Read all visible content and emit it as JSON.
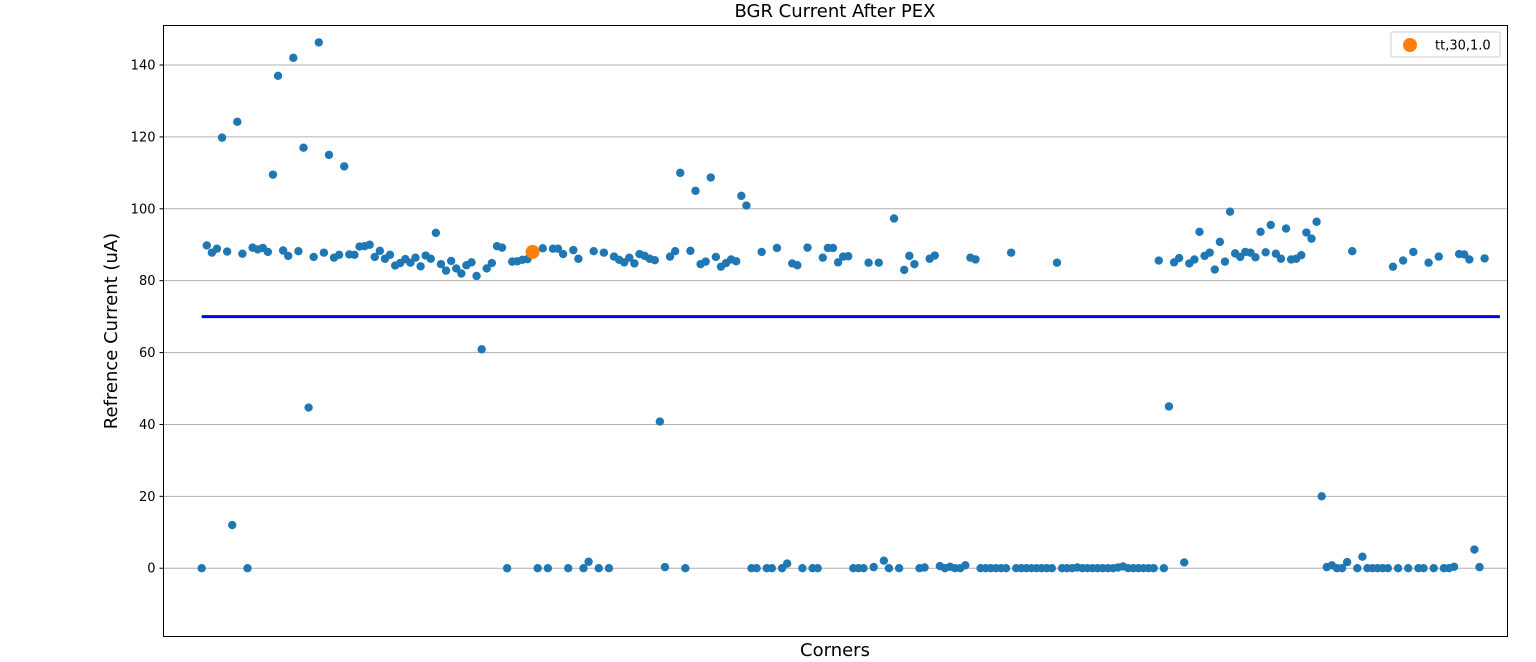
{
  "chart_data": {
    "type": "scatter",
    "title": "BGR Current After PEX",
    "xlabel": "Corners",
    "ylabel": "Refrence Current (uA)",
    "ylim": [
      -19,
      151
    ],
    "xlim": [
      -7.5,
      256.5
    ],
    "yticks": [
      0,
      20,
      40,
      60,
      80,
      100,
      120,
      140
    ],
    "xticks": [],
    "grid": "horizontal",
    "legend_position": "top-right",
    "colors": {
      "points": "#1f77b4",
      "highlight": "#ff7f0e",
      "threshold": "#0000ff",
      "grid": "#b0b0b0"
    },
    "series": [
      {
        "points": [
          [
            0,
            0
          ],
          [
            1,
            89.8
          ],
          [
            2,
            87.8
          ],
          [
            3,
            88.9
          ],
          [
            4,
            119.8
          ],
          [
            5,
            88.1
          ],
          [
            6,
            12
          ],
          [
            7,
            124.2
          ],
          [
            8,
            87.5
          ],
          [
            9,
            0
          ],
          [
            10,
            89.2
          ],
          [
            11,
            88.7
          ],
          [
            12,
            89.1
          ],
          [
            13,
            88
          ],
          [
            14,
            109.5
          ],
          [
            15,
            137
          ],
          [
            16,
            88.4
          ],
          [
            17,
            86.9
          ],
          [
            18,
            142
          ],
          [
            19,
            88.2
          ],
          [
            20,
            117
          ],
          [
            21,
            44.7
          ],
          [
            22,
            86.6
          ],
          [
            23,
            146.3
          ],
          [
            24,
            87.8
          ],
          [
            25,
            115
          ],
          [
            26,
            86.4
          ],
          [
            27,
            87.2
          ],
          [
            28,
            111.8
          ],
          [
            29,
            87.3
          ],
          [
            30,
            87.2
          ],
          [
            31,
            89.5
          ],
          [
            32,
            89.6
          ],
          [
            33,
            90
          ],
          [
            34,
            86.6
          ],
          [
            35,
            88.3
          ],
          [
            36,
            86.1
          ],
          [
            37,
            87.2
          ],
          [
            38,
            84.2
          ],
          [
            39,
            84.9
          ],
          [
            40,
            86
          ],
          [
            41,
            85
          ],
          [
            42,
            86.4
          ],
          [
            43,
            84
          ],
          [
            44,
            87
          ],
          [
            45,
            86.1
          ],
          [
            46,
            93.3
          ],
          [
            47,
            84.6
          ],
          [
            48,
            82.8
          ],
          [
            49,
            85.5
          ],
          [
            50,
            83.4
          ],
          [
            51,
            82
          ],
          [
            52,
            84.3
          ],
          [
            53,
            85.1
          ],
          [
            54,
            81.3
          ],
          [
            55,
            60.9
          ],
          [
            56,
            83.4
          ],
          [
            57,
            84.9
          ],
          [
            58,
            89.6
          ],
          [
            59,
            89.2
          ],
          [
            60,
            0
          ],
          [
            61,
            85.3
          ],
          [
            62,
            85.4
          ],
          [
            63,
            85.8
          ],
          [
            64,
            86
          ],
          [
            66,
            0
          ],
          [
            67,
            89
          ],
          [
            68,
            0
          ],
          [
            69,
            88.9
          ],
          [
            70,
            88.9
          ],
          [
            71,
            87.4
          ],
          [
            72,
            0
          ],
          [
            73,
            88.5
          ],
          [
            74,
            86.1
          ],
          [
            75,
            0
          ],
          [
            76,
            1.8
          ],
          [
            77,
            88.2
          ],
          [
            78,
            0
          ],
          [
            79,
            87.8
          ],
          [
            80,
            0
          ],
          [
            81,
            86.7
          ],
          [
            82,
            85.8
          ],
          [
            83,
            85.1
          ],
          [
            84,
            86.4
          ],
          [
            85,
            84.8
          ],
          [
            86,
            87.4
          ],
          [
            87,
            86.9
          ],
          [
            88,
            86.1
          ],
          [
            89,
            85.7
          ],
          [
            90,
            40.8
          ],
          [
            91,
            0.3
          ],
          [
            92,
            86.7
          ],
          [
            93,
            88.2
          ],
          [
            94,
            110
          ],
          [
            95,
            0
          ],
          [
            96,
            88.3
          ],
          [
            97,
            105
          ],
          [
            98,
            84.6
          ],
          [
            99,
            85.3
          ],
          [
            100,
            108.7
          ],
          [
            101,
            86.6
          ],
          [
            102,
            83.9
          ],
          [
            103,
            84.9
          ],
          [
            104,
            85.9
          ],
          [
            105,
            85.4
          ],
          [
            106,
            103.6
          ],
          [
            107,
            100.9
          ],
          [
            108,
            0
          ],
          [
            109,
            0
          ],
          [
            110,
            88
          ],
          [
            111,
            0
          ],
          [
            112,
            0
          ],
          [
            113,
            89.1
          ],
          [
            114,
            0
          ],
          [
            115,
            1.3
          ],
          [
            116,
            84.8
          ],
          [
            117,
            84.3
          ],
          [
            118,
            0
          ],
          [
            119,
            89.2
          ],
          [
            120,
            0
          ],
          [
            121,
            0
          ],
          [
            122,
            86.4
          ],
          [
            123,
            89.1
          ],
          [
            124,
            89.1
          ],
          [
            125,
            85.1
          ],
          [
            126,
            86.7
          ],
          [
            127,
            86.8
          ],
          [
            128,
            0
          ],
          [
            129,
            0
          ],
          [
            130,
            0
          ],
          [
            131,
            85
          ],
          [
            132,
            0.3
          ],
          [
            133,
            85
          ],
          [
            134,
            2.1
          ],
          [
            135,
            0
          ],
          [
            136,
            97.3
          ],
          [
            137,
            0
          ],
          [
            138,
            83
          ],
          [
            139,
            86.9
          ],
          [
            140,
            84.6
          ],
          [
            141,
            0
          ],
          [
            142,
            0.2
          ],
          [
            143,
            86.1
          ],
          [
            144,
            87
          ],
          [
            145,
            0.6
          ],
          [
            146,
            0
          ],
          [
            147,
            0.4
          ],
          [
            148,
            0
          ],
          [
            149,
            0
          ],
          [
            150,
            0.8
          ],
          [
            151,
            86.4
          ],
          [
            152,
            85.9
          ],
          [
            153,
            0
          ],
          [
            154,
            0
          ],
          [
            155,
            0
          ],
          [
            156,
            0
          ],
          [
            157,
            0
          ],
          [
            158,
            0
          ],
          [
            159,
            87.8
          ],
          [
            160,
            0
          ],
          [
            161,
            0
          ],
          [
            162,
            0
          ],
          [
            163,
            0
          ],
          [
            164,
            0
          ],
          [
            165,
            0
          ],
          [
            166,
            0
          ],
          [
            167,
            0
          ],
          [
            168,
            85
          ],
          [
            169,
            0
          ],
          [
            170,
            0
          ],
          [
            171,
            0
          ],
          [
            172,
            0.2
          ],
          [
            173,
            0
          ],
          [
            174,
            0
          ],
          [
            175,
            0
          ],
          [
            176,
            0
          ],
          [
            177,
            0
          ],
          [
            178,
            0
          ],
          [
            179,
            0
          ],
          [
            180,
            0.2
          ],
          [
            181,
            0.5
          ],
          [
            182,
            0
          ],
          [
            183,
            0
          ],
          [
            184,
            0
          ],
          [
            185,
            0
          ],
          [
            186,
            0
          ],
          [
            187,
            0
          ],
          [
            188,
            85.6
          ],
          [
            189,
            0
          ],
          [
            190,
            45
          ],
          [
            191,
            85.1
          ],
          [
            192,
            86.3
          ],
          [
            193,
            1.6
          ],
          [
            194,
            84.8
          ],
          [
            195,
            85.9
          ],
          [
            196,
            93.6
          ],
          [
            197,
            86.9
          ],
          [
            198,
            87.8
          ],
          [
            199,
            83.1
          ],
          [
            200,
            90.8
          ],
          [
            201,
            85.3
          ],
          [
            202,
            99.2
          ],
          [
            203,
            87.6
          ],
          [
            204,
            86.6
          ],
          [
            205,
            88
          ],
          [
            206,
            87.8
          ],
          [
            207,
            86.5
          ],
          [
            208,
            93.6
          ],
          [
            209,
            87.9
          ],
          [
            210,
            95.5
          ],
          [
            211,
            87.5
          ],
          [
            212,
            86.1
          ],
          [
            213,
            94.5
          ],
          [
            214,
            85.9
          ],
          [
            215,
            86.1
          ],
          [
            216,
            87.1
          ],
          [
            217,
            93.4
          ],
          [
            218,
            91.7
          ],
          [
            219,
            96.4
          ],
          [
            220,
            20
          ],
          [
            221,
            0.3
          ],
          [
            222,
            0.8
          ],
          [
            223,
            0
          ],
          [
            224,
            0
          ],
          [
            225,
            1.7
          ],
          [
            226,
            88.2
          ],
          [
            227,
            0
          ],
          [
            228,
            3.2
          ],
          [
            229,
            0
          ],
          [
            230,
            0
          ],
          [
            231,
            0
          ],
          [
            232,
            0
          ],
          [
            233,
            0
          ],
          [
            234,
            83.9
          ],
          [
            235,
            0
          ],
          [
            236,
            85.6
          ],
          [
            237,
            0
          ],
          [
            238,
            88
          ],
          [
            239,
            0
          ],
          [
            240,
            0
          ],
          [
            241,
            85
          ],
          [
            242,
            0
          ],
          [
            243,
            86.7
          ],
          [
            244,
            0
          ],
          [
            245,
            0
          ],
          [
            246,
            0.4
          ],
          [
            247,
            87.4
          ],
          [
            248,
            87.3
          ],
          [
            249,
            85.9
          ],
          [
            250,
            5.2
          ],
          [
            251,
            0.3
          ],
          [
            252,
            86.2
          ]
        ]
      },
      {
        "name": "tt,30,1.0",
        "points": [
          [
            65,
            88
          ]
        ]
      }
    ],
    "threshold_line": {
      "y": 70,
      "x_from": 0,
      "x_to": 255
    }
  }
}
